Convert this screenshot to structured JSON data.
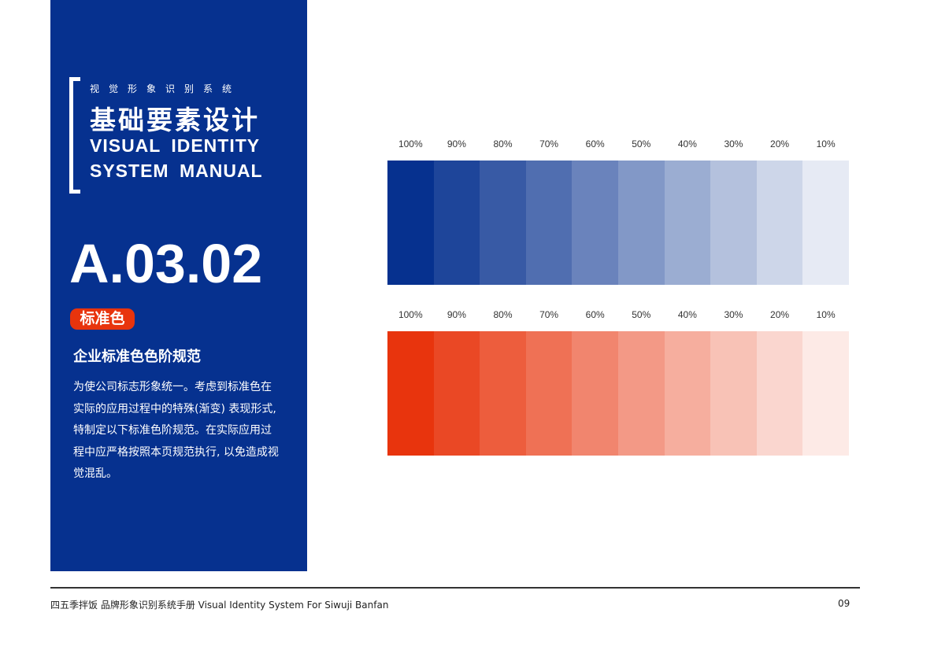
{
  "panel": {
    "subtitle": "视觉形象识别系统",
    "title_cn": "基础要素设计",
    "title_en_1": "VISUAL IDENTITY",
    "title_en_2": "SYSTEM MANUAL",
    "code": "A.03.02",
    "badge": "标准色",
    "heading": "企业标准色色阶规范",
    "body": "为使公司标志形象统一。考虑到标准色在实际的应用过程中的特殊(渐变) 表现形式, 特制定以下标准色阶规范。在实际应用过程中应严格按照本页规范执行, 以免造成视觉混乱。"
  },
  "colors": {
    "blue": "#06318f",
    "red": "#e8340d"
  },
  "scales": [
    {
      "color": "#06318f",
      "labels": [
        "100%",
        "90%",
        "80%",
        "70%",
        "60%",
        "50%",
        "40%",
        "30%",
        "20%",
        "10%"
      ],
      "values": [
        100,
        90,
        80,
        70,
        60,
        50,
        40,
        30,
        20,
        10
      ]
    },
    {
      "color": "#e8340d",
      "labels": [
        "100%",
        "90%",
        "80%",
        "70%",
        "60%",
        "50%",
        "40%",
        "30%",
        "20%",
        "10%"
      ],
      "values": [
        100,
        90,
        80,
        70,
        60,
        50,
        40,
        30,
        20,
        10
      ]
    }
  ],
  "footer": {
    "text": "四五季拌饭 品牌形象识别系统手册  Visual Identity System For Siwuji Banfan",
    "page": "09"
  }
}
